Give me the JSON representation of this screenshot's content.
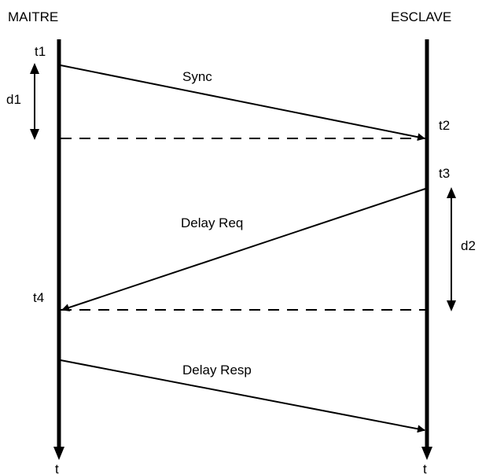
{
  "lanes": {
    "master": "MAITRE",
    "slave": "ESCLAVE"
  },
  "timestamps": {
    "t1": "t1",
    "t2": "t2",
    "t3": "t3",
    "t4": "t4"
  },
  "durations": {
    "d1": "d1",
    "d2": "d2"
  },
  "messages": {
    "sync": "Sync",
    "delay_req": "Delay Req",
    "delay_resp": "Delay Resp"
  },
  "axis_label": {
    "master": "t",
    "slave": "t"
  }
}
